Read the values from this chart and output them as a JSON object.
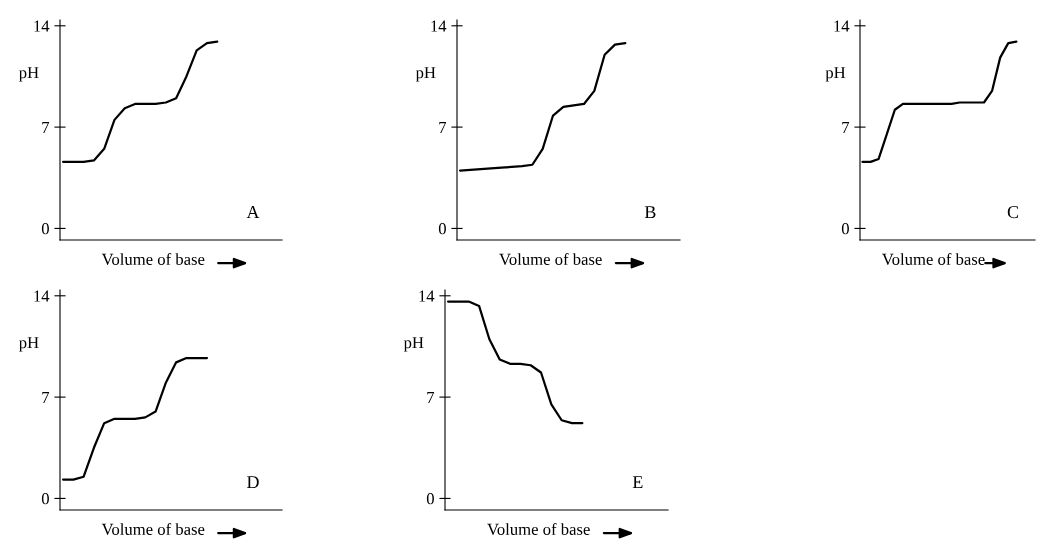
{
  "chart_data": [
    {
      "type": "line",
      "ylabel": "pH",
      "xlabel": "Volume of base",
      "tick_labels": "y",
      "ylim": [
        -0.8,
        14.4
      ],
      "yticks": [
        0,
        7,
        14
      ],
      "annotations": [
        "A"
      ],
      "categories": [
        null,
        null,
        null,
        null,
        null,
        null,
        null,
        null,
        null,
        null,
        null,
        null,
        null,
        null,
        null,
        null,
        null,
        null,
        null,
        null,
        null,
        null
      ],
      "series": [
        {
          "color": "#000000",
          "values": [
            4.6,
            4.6,
            4.6,
            4.7,
            5.5,
            7.5,
            8.3,
            8.6,
            8.6,
            8.6,
            8.7,
            9.0,
            10.5,
            12.3,
            12.8,
            12.9,
            null,
            null,
            null,
            null,
            null,
            null
          ]
        }
      ]
    },
    {
      "type": "line",
      "ylabel": "pH",
      "xlabel": "Volume of base",
      "tick_labels": "y",
      "ylim": [
        -0.8,
        14.4
      ],
      "yticks": [
        0,
        7,
        14
      ],
      "annotations": [
        "B"
      ],
      "categories": [
        null,
        null,
        null,
        null,
        null,
        null,
        null,
        null,
        null,
        null,
        null,
        null,
        null,
        null,
        null,
        null,
        null,
        null,
        null,
        null,
        null,
        null
      ],
      "series": [
        {
          "color": "#000000",
          "values": [
            4.0,
            4.05,
            4.1,
            4.15,
            4.2,
            4.25,
            4.3,
            4.4,
            5.5,
            7.8,
            8.4,
            8.5,
            8.6,
            9.5,
            12.0,
            12.7,
            12.8,
            null,
            null,
            null,
            null,
            null
          ]
        }
      ]
    },
    {
      "type": "line",
      "ylabel": "pH",
      "xlabel": "Volume of base",
      "tick_labels": "y",
      "ylim": [
        -0.8,
        14.4
      ],
      "yticks": [
        0,
        7,
        14
      ],
      "annotations": [
        "C"
      ],
      "categories": [
        null,
        null,
        null,
        null,
        null,
        null,
        null,
        null,
        null,
        null,
        null,
        null,
        null,
        null,
        null,
        null,
        null,
        null,
        null,
        null,
        null,
        null
      ],
      "series": [
        {
          "color": "#000000",
          "values": [
            4.6,
            4.6,
            4.8,
            6.5,
            8.2,
            8.6,
            8.6,
            8.6,
            8.6,
            8.6,
            8.6,
            8.6,
            8.7,
            8.7,
            8.7,
            8.7,
            9.5,
            11.8,
            12.8,
            12.9,
            null,
            null
          ]
        }
      ]
    },
    {
      "type": "line",
      "ylabel": "pH",
      "xlabel": "Volume of base",
      "tick_labels": "y",
      "ylim": [
        -0.8,
        14.4
      ],
      "yticks": [
        0,
        7,
        14
      ],
      "annotations": [
        "D"
      ],
      "categories": [
        null,
        null,
        null,
        null,
        null,
        null,
        null,
        null,
        null,
        null,
        null,
        null,
        null,
        null,
        null,
        null,
        null,
        null,
        null,
        null,
        null,
        null
      ],
      "series": [
        {
          "color": "#000000",
          "values": [
            1.3,
            1.3,
            1.5,
            3.5,
            5.2,
            5.5,
            5.5,
            5.5,
            5.6,
            6.0,
            8.0,
            9.4,
            9.7,
            9.7,
            9.7,
            null,
            null,
            null,
            null,
            null,
            null,
            null
          ]
        }
      ]
    },
    {
      "type": "line",
      "ylabel": "pH",
      "xlabel": "Volume of base",
      "tick_labels": "y",
      "ylim": [
        -0.8,
        14.4
      ],
      "yticks": [
        0,
        7,
        14
      ],
      "annotations": [
        "E"
      ],
      "categories": [
        null,
        null,
        null,
        null,
        null,
        null,
        null,
        null,
        null,
        null,
        null,
        null,
        null,
        null,
        null,
        null,
        null,
        null,
        null,
        null,
        null,
        null
      ],
      "series": [
        {
          "color": "#000000",
          "values": [
            13.6,
            13.6,
            13.6,
            13.3,
            11.0,
            9.6,
            9.3,
            9.3,
            9.2,
            8.7,
            6.5,
            5.4,
            5.2,
            5.2,
            null,
            null,
            null,
            null,
            null,
            null,
            null,
            null
          ]
        }
      ]
    }
  ]
}
